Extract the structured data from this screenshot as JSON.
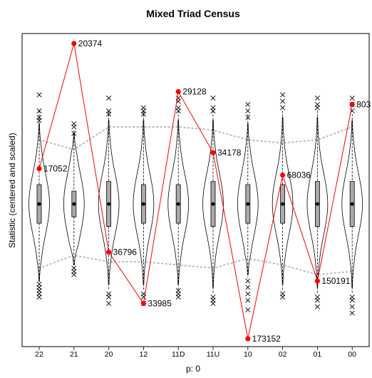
{
  "chart_data": {
    "type": "violin",
    "title": "Mixed Triad Census",
    "xlabel": "p: 0",
    "ylabel": "Statistic (centered and scaled)",
    "categories": [
      "22",
      "21",
      "20",
      "12",
      "11D",
      "11U",
      "10",
      "02",
      "01",
      "00"
    ],
    "ylim": [
      -4.4,
      3.4
    ],
    "grid": false,
    "legend": "none",
    "distributions": [
      {
        "category": "22",
        "q1": -0.6,
        "median": 0.0,
        "q3": 0.6,
        "whisker_low": -2.5,
        "whisker_high": 2.9,
        "violin_low": -2.4,
        "violin_high": 2.5,
        "outliers": [
          -2.5,
          -2.6,
          -2.7,
          -2.8,
          -2.9,
          2.6,
          2.7,
          2.9,
          3.4
        ]
      },
      {
        "category": "21",
        "q1": -0.4,
        "median": 0.0,
        "q3": 0.4,
        "whisker_low": -2.0,
        "whisker_high": 2.3,
        "violin_low": -1.9,
        "violin_high": 2.2,
        "outliers": [
          -2.0,
          -2.1,
          -2.2,
          2.2,
          2.4,
          2.5
        ]
      },
      {
        "category": "20",
        "q1": -0.7,
        "median": 0.0,
        "q3": 0.7,
        "whisker_low": -2.7,
        "whisker_high": 2.9,
        "violin_low": -2.5,
        "violin_high": 2.6,
        "outliers": [
          -2.8,
          -2.9,
          -3.1,
          2.8,
          2.9,
          3.3
        ]
      },
      {
        "category": "12",
        "q1": -0.6,
        "median": 0.0,
        "q3": 0.6,
        "whisker_low": -2.7,
        "whisker_high": 2.9,
        "violin_low": -2.5,
        "violin_high": 2.6,
        "outliers": [
          -2.8,
          -2.9,
          -3.1,
          2.8,
          2.9,
          3.0
        ]
      },
      {
        "category": "11D",
        "q1": -0.6,
        "median": 0.0,
        "q3": 0.6,
        "whisker_low": -2.7,
        "whisker_high": 2.9,
        "violin_low": -2.5,
        "violin_high": 2.6,
        "outliers": [
          -2.7,
          -2.8,
          -2.9,
          2.9,
          3.0,
          3.2,
          3.3
        ]
      },
      {
        "category": "11U",
        "q1": -0.7,
        "median": 0.0,
        "q3": 0.7,
        "whisker_low": -2.8,
        "whisker_high": 2.9,
        "violin_low": -2.6,
        "violin_high": 2.6,
        "outliers": [
          -2.9,
          -3.0,
          -3.1,
          2.9,
          3.0,
          3.3
        ]
      },
      {
        "category": "10",
        "q1": -0.6,
        "median": 0.0,
        "q3": 0.6,
        "whisker_low": -2.3,
        "whisker_high": 2.8,
        "violin_low": -2.2,
        "violin_high": 2.5,
        "outliers": [
          -2.4,
          -2.6,
          -2.8,
          -3.0,
          -3.3,
          2.7,
          2.9,
          3.1
        ]
      },
      {
        "category": "02",
        "q1": -0.6,
        "median": 0.0,
        "q3": 0.6,
        "whisker_low": -2.7,
        "whisker_high": 2.9,
        "violin_low": -2.5,
        "violin_high": 2.7,
        "outliers": [
          -2.8,
          -2.9,
          3.0,
          3.2,
          3.4
        ]
      },
      {
        "category": "01",
        "q1": -0.7,
        "median": 0.0,
        "q3": 0.7,
        "whisker_low": -2.8,
        "whisker_high": 2.9,
        "violin_low": -2.6,
        "violin_high": 2.7,
        "outliers": [
          -2.9,
          -3.0,
          -3.2,
          3.0,
          3.1,
          3.3
        ]
      },
      {
        "category": "00",
        "q1": -0.7,
        "median": 0.0,
        "q3": 0.7,
        "whisker_low": -2.8,
        "whisker_high": 2.8,
        "violin_low": -2.6,
        "violin_high": 2.6,
        "outliers": [
          -2.9,
          -3.0,
          -3.2,
          -3.4,
          2.9,
          3.1,
          3.3
        ]
      }
    ],
    "reference_band": {
      "upper": [
        2.0,
        1.7,
        2.4,
        2.4,
        2.4,
        2.3,
        2.0,
        1.9,
        2.0,
        2.4
      ],
      "lower": [
        -2.0,
        -1.6,
        -1.8,
        -1.8,
        -1.9,
        -2.0,
        -1.7,
        -1.9,
        -2.2,
        -2.1
      ]
    },
    "observed": {
      "series": [
        {
          "category": "22",
          "y": 1.1,
          "label": "17052"
        },
        {
          "category": "21",
          "y": 5.0,
          "label": "20374"
        },
        {
          "category": "20",
          "y": -1.5,
          "label": "36796"
        },
        {
          "category": "12",
          "y": -3.1,
          "label": "33985"
        },
        {
          "category": "11D",
          "y": 3.5,
          "label": "29128"
        },
        {
          "category": "11U",
          "y": 1.6,
          "label": "34178"
        },
        {
          "category": "10",
          "y": -4.2,
          "label": "173152"
        },
        {
          "category": "02",
          "y": 0.9,
          "label": "68036"
        },
        {
          "category": "01",
          "y": -2.4,
          "label": "150191"
        },
        {
          "category": "00",
          "y": 3.1,
          "label": "803"
        }
      ]
    },
    "colors": {
      "observed": "#ff0000",
      "band": "#bbbbbb",
      "box": "#aaaaaa"
    }
  }
}
